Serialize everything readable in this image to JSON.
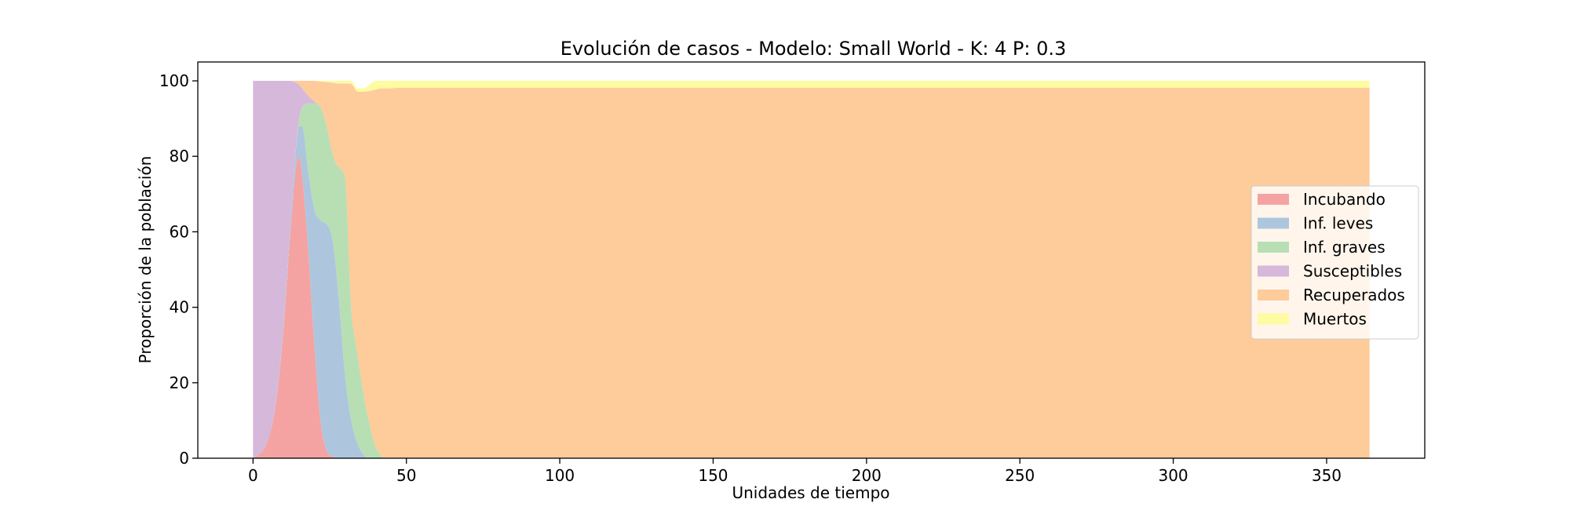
{
  "chart_data": {
    "type": "area",
    "stacked": true,
    "title": "Evolución de casos - Modelo: Small World - K: 4 P: 0.3",
    "xlabel": "Unidades de tiempo",
    "ylabel": "Proporción de la población",
    "xlim": [
      -18,
      382
    ],
    "ylim": [
      0,
      105
    ],
    "xticks": [
      0,
      50,
      100,
      150,
      200,
      250,
      300,
      350
    ],
    "yticks": [
      0,
      20,
      40,
      60,
      80,
      100
    ],
    "grid": false,
    "legend_position": "center-right",
    "x": [
      0,
      2,
      4,
      6,
      8,
      10,
      12,
      14,
      15,
      16,
      18,
      20,
      22,
      24,
      26,
      28,
      30,
      32,
      34,
      36,
      38,
      40,
      42,
      44,
      46,
      50,
      55,
      60,
      70,
      100,
      364
    ],
    "series": [
      {
        "name": "Incubando",
        "color": "#f4a3a2",
        "values": [
          0,
          1,
          3,
          8,
          18,
          35,
          58,
          77,
          80,
          75,
          55,
          30,
          10,
          2,
          0.5,
          0,
          0,
          0,
          0,
          0,
          0,
          0,
          0,
          0,
          0,
          0,
          0,
          0,
          0,
          0,
          0
        ]
      },
      {
        "name": "Inf. leves",
        "color": "#adc6de",
        "values": [
          0,
          0,
          0,
          0,
          0.5,
          1,
          2,
          5,
          8,
          13,
          21,
          36,
          53,
          60,
          57,
          42,
          22,
          10,
          4,
          1,
          0,
          0,
          0,
          0,
          0,
          0,
          0,
          0,
          0,
          0,
          0
        ]
      },
      {
        "name": "Inf. graves",
        "color": "#b7dfb3",
        "values": [
          0,
          0,
          0,
          0,
          0,
          0,
          0,
          0.5,
          2,
          5,
          18,
          28,
          30,
          26,
          23,
          35,
          52,
          30,
          24,
          16,
          9,
          3,
          0.5,
          0,
          0,
          0,
          0,
          0,
          0,
          0,
          0
        ]
      },
      {
        "name": "Susceptibles",
        "color": "#d5b8da",
        "values": [
          100,
          99,
          97,
          92,
          81.5,
          64,
          40,
          17,
          9,
          5,
          2,
          0.5,
          0,
          0,
          0,
          0,
          0,
          0,
          0,
          0,
          0,
          0,
          0,
          0,
          0,
          0,
          0,
          0,
          0,
          0,
          0
        ]
      },
      {
        "name": "Recuperados",
        "color": "#fecb9a",
        "values": [
          0,
          0,
          0,
          0,
          0,
          0,
          0,
          0.5,
          1,
          2,
          4,
          5.5,
          6.8,
          11.7,
          19,
          22.3,
          25.3,
          59.2,
          69.2,
          80.1,
          88.3,
          94.7,
          97.5,
          98,
          98.1,
          98.2,
          98.2,
          98.2,
          98.2,
          98.2,
          98.2
        ]
      },
      {
        "name": "Muertos",
        "color": "#fefba0",
        "values": [
          0,
          0,
          0,
          0,
          0,
          0,
          0,
          0,
          0,
          0,
          0,
          0,
          0.2,
          0.3,
          0.5,
          0.7,
          0.7,
          0.8,
          0.8,
          0.9,
          1.7,
          2.3,
          2,
          2,
          1.9,
          1.8,
          1.8,
          1.8,
          1.8,
          1.8,
          1.8
        ]
      }
    ]
  }
}
